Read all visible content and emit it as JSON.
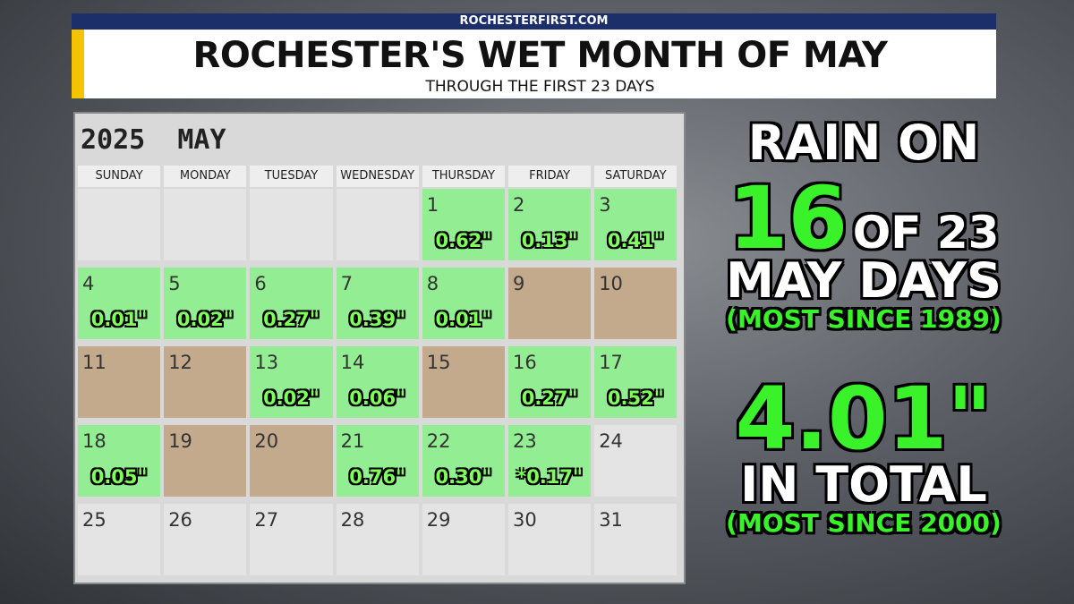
{
  "header": {
    "source": "ROCHESTERFIRST.COM",
    "title": "ROCHESTER'S WET MONTH OF MAY",
    "subtitle": "THROUGH THE FIRST 23 DAYS"
  },
  "calendar": {
    "year": "2025",
    "month": "MAY",
    "weekdays": [
      "SUNDAY",
      "MONDAY",
      "TUESDAY",
      "WEDNESDAY",
      "THURSDAY",
      "FRIDAY",
      "SATURDAY"
    ],
    "weeks": [
      [
        null,
        null,
        null,
        null,
        {
          "day": "1",
          "rain": "0.62\"",
          "color": "#93ee93"
        },
        {
          "day": "2",
          "rain": "0.13\"",
          "color": "#93ee93"
        },
        {
          "day": "3",
          "rain": "0.41\"",
          "color": "#93ee93"
        }
      ],
      [
        {
          "day": "4",
          "rain": "0.01\"",
          "color": "#93ee93"
        },
        {
          "day": "5",
          "rain": "0.02\"",
          "color": "#93ee93"
        },
        {
          "day": "6",
          "rain": "0.27\"",
          "color": "#93ee93"
        },
        {
          "day": "7",
          "rain": "0.39\"",
          "color": "#93ee93"
        },
        {
          "day": "8",
          "rain": "0.01\"",
          "color": "#93ee93"
        },
        {
          "day": "9",
          "color": "#c4aa8c"
        },
        {
          "day": "10",
          "color": "#c4aa8c"
        }
      ],
      [
        {
          "day": "11",
          "color": "#c4aa8c"
        },
        {
          "day": "12",
          "color": "#c4aa8c"
        },
        {
          "day": "13",
          "rain": "0.02\"",
          "color": "#93ee93"
        },
        {
          "day": "14",
          "rain": "0.06\"",
          "color": "#93ee93"
        },
        {
          "day": "15",
          "color": "#c4aa8c"
        },
        {
          "day": "16",
          "rain": "0.27\"",
          "color": "#93ee93"
        },
        {
          "day": "17",
          "rain": "0.52\"",
          "color": "#93ee93"
        }
      ],
      [
        {
          "day": "18",
          "rain": "0.05\"",
          "color": "#93ee93"
        },
        {
          "day": "19",
          "color": "#c4aa8c"
        },
        {
          "day": "20",
          "color": "#c4aa8c"
        },
        {
          "day": "21",
          "rain": "0.76\"",
          "color": "#93ee93"
        },
        {
          "day": "22",
          "rain": "0.30\"",
          "color": "#93ee93"
        },
        {
          "day": "23",
          "rain": "*0.17\"",
          "color": "#93ee93"
        },
        {
          "day": "24",
          "color": "#e4e4e4"
        }
      ],
      [
        {
          "day": "25",
          "color": "#e4e4e4"
        },
        {
          "day": "26",
          "color": "#e4e4e4"
        },
        {
          "day": "27",
          "color": "#e4e4e4"
        },
        {
          "day": "28",
          "color": "#e4e4e4"
        },
        {
          "day": "29",
          "color": "#e4e4e4"
        },
        {
          "day": "30",
          "color": "#e4e4e4"
        },
        {
          "day": "31",
          "color": "#e4e4e4"
        }
      ]
    ]
  },
  "summary": {
    "line1": "RAIN ON",
    "days_count": "16",
    "days_of": "OF 23",
    "line3": "MAY DAYS",
    "note1": "(MOST SINCE 1989)",
    "total": "4.01\"",
    "line5": "IN TOTAL",
    "note2": "(MOST SINCE 2000)"
  }
}
